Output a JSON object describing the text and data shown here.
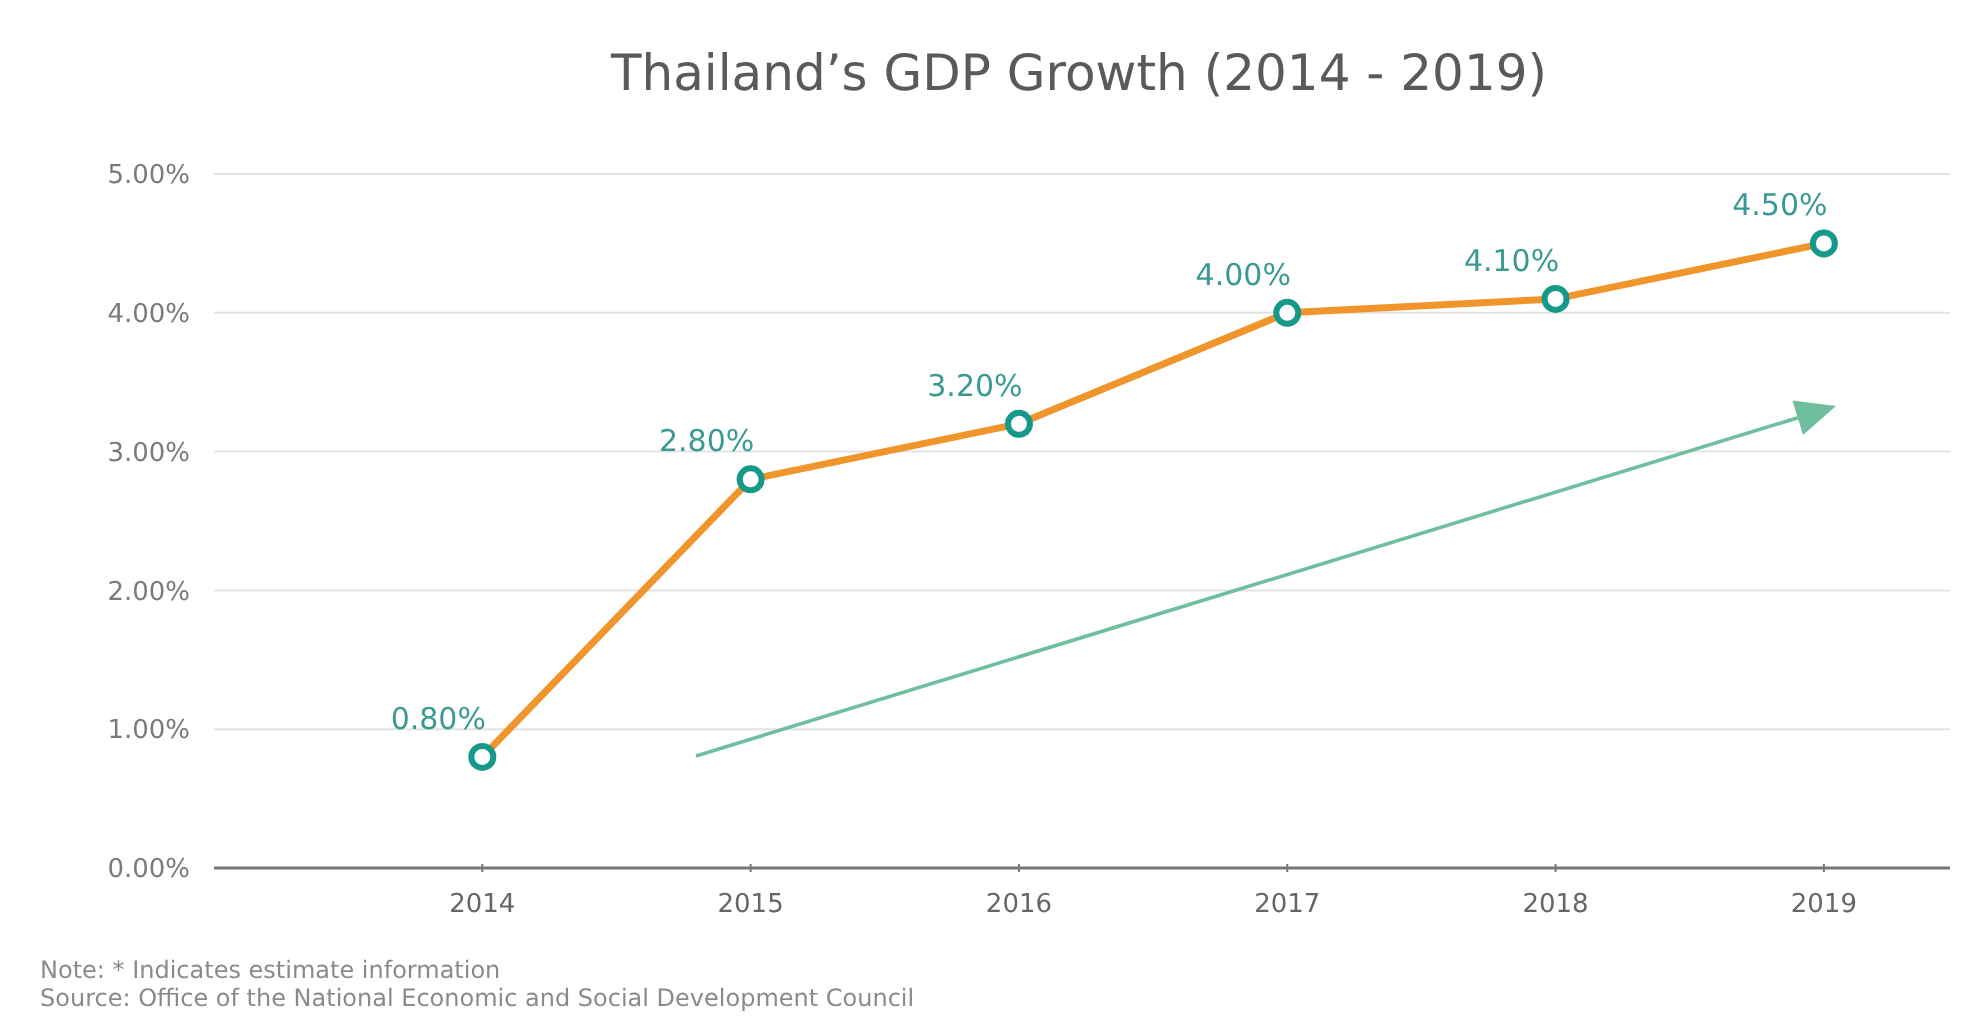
{
  "chart_data": {
    "type": "line",
    "title": "Thailand’s GDP Growth (2014 - 2019)",
    "categories": [
      "2014",
      "2015",
      "2016",
      "2017",
      "2018",
      "2019"
    ],
    "series": [
      {
        "color": "#f0952b",
        "values": [
          0.8,
          2.8,
          3.2,
          4.0,
          4.1,
          4.5
        ],
        "value_labels": [
          "0.80%",
          "2.80%",
          "3.20%",
          "4.00%",
          "4.10%",
          "4.50%"
        ]
      }
    ],
    "ylim": [
      0,
      5
    ],
    "yticks": [
      {
        "value": 0,
        "label": "0.00%"
      },
      {
        "value": 1,
        "label": "1.00%"
      },
      {
        "value": 2,
        "label": "2.00%"
      },
      {
        "value": 3,
        "label": "3.00%"
      },
      {
        "value": 4,
        "label": "4.00%"
      },
      {
        "value": 5,
        "label": "5.00%"
      }
    ],
    "grid": "y",
    "marker": "circle",
    "line_style": "solid",
    "annotations": [
      "Note: * Indicates estimate information",
      "Source: Office of the National Economic and Social Development Council"
    ]
  }
}
